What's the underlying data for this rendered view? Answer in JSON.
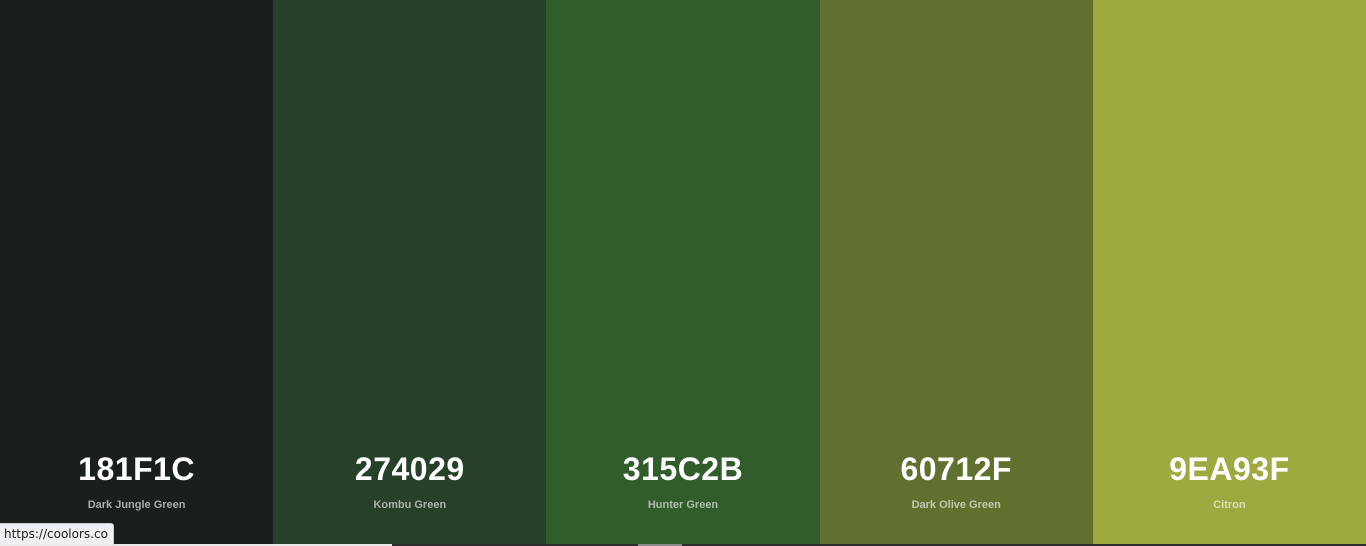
{
  "palette": {
    "colors": [
      {
        "hex": "181F1C",
        "name": "Dark Jungle Green",
        "bg": "#181F1C",
        "text_color": "#FFFFFF",
        "name_color": "#A9ADAB"
      },
      {
        "hex": "274029",
        "name": "Kombu Green",
        "bg": "#274029",
        "text_color": "#FFFFFF",
        "name_color": "#A9B3AA"
      },
      {
        "hex": "315C2B",
        "name": "Hunter Green",
        "bg": "#315C2B",
        "text_color": "#FFFFFF",
        "name_color": "#ADBEAA"
      },
      {
        "hex": "60712F",
        "name": "Dark Olive Green",
        "bg": "#60712F",
        "text_color": "#FFFFFF",
        "name_color": "#C3C9AE"
      },
      {
        "hex": "9EA93F",
        "name": "Citron",
        "bg": "#9EA93F",
        "text_color": "#FFFFFF",
        "name_color": "#DADDB8"
      }
    ]
  },
  "status_bar": {
    "url": "https://coolors.co"
  }
}
